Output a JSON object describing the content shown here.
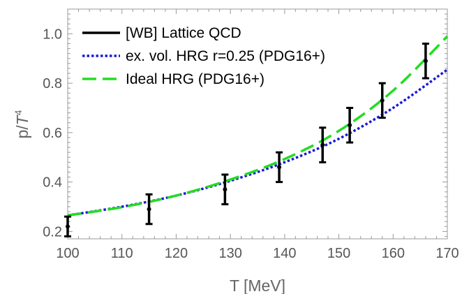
{
  "chart_data": {
    "type": "line",
    "xlabel": "T [MeV]",
    "ylabel_main": "p/",
    "ylabel_italic": "T",
    "ylabel_sup": "4",
    "xlim": [
      100,
      170
    ],
    "ylim": [
      0.17,
      1.1
    ],
    "xticks": [
      100,
      110,
      120,
      130,
      140,
      150,
      160,
      170
    ],
    "xtick_labels": [
      "100",
      "110",
      "120",
      "130",
      "140",
      "150",
      "160",
      "170"
    ],
    "yticks": [
      0.2,
      0.4,
      0.6,
      0.8,
      1.0
    ],
    "ytick_labels": [
      "0.2",
      "0.4",
      "0.6",
      "0.8",
      "1.0"
    ],
    "legend_position": "top-left",
    "series": [
      {
        "name": "[WB] Lattice QCD",
        "style": "errorbar",
        "color": "#000000",
        "points": [
          {
            "x": 100,
            "y": 0.22,
            "lo": 0.18,
            "hi": 0.26
          },
          {
            "x": 115,
            "y": 0.29,
            "lo": 0.23,
            "hi": 0.35
          },
          {
            "x": 129,
            "y": 0.37,
            "lo": 0.31,
            "hi": 0.43
          },
          {
            "x": 139,
            "y": 0.46,
            "lo": 0.4,
            "hi": 0.52
          },
          {
            "x": 147,
            "y": 0.55,
            "lo": 0.48,
            "hi": 0.62
          },
          {
            "x": 152,
            "y": 0.63,
            "lo": 0.56,
            "hi": 0.7
          },
          {
            "x": 158,
            "y": 0.73,
            "lo": 0.66,
            "hi": 0.8
          },
          {
            "x": 166,
            "y": 0.89,
            "lo": 0.82,
            "hi": 0.96
          }
        ]
      },
      {
        "name": "ex. vol. HRG r=0.25 (PDG16+)",
        "style": "dotted",
        "color": "#1a1ad6",
        "x": [
          100,
          110,
          120,
          130,
          140,
          150,
          160,
          170
        ],
        "y": [
          0.265,
          0.3,
          0.345,
          0.405,
          0.48,
          0.575,
          0.7,
          0.855
        ]
      },
      {
        "name": "Ideal HRG (PDG16+)",
        "style": "dashed",
        "color": "#22dd22",
        "x": [
          100,
          110,
          120,
          130,
          140,
          150,
          160,
          170
        ],
        "y": [
          0.265,
          0.298,
          0.345,
          0.41,
          0.493,
          0.607,
          0.77,
          0.99
        ]
      }
    ]
  }
}
